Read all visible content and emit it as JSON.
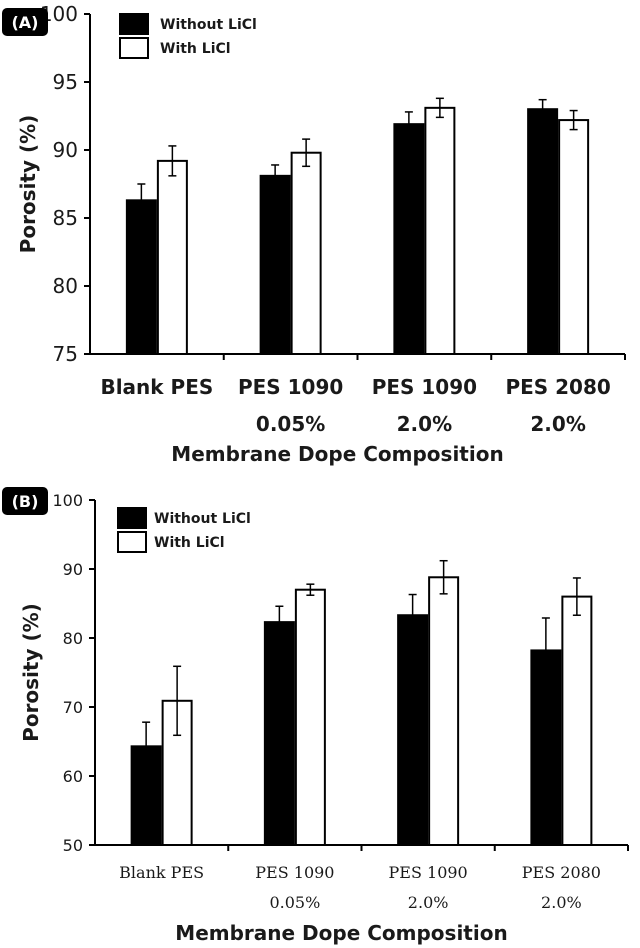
{
  "chart_data": [
    {
      "type": "bar",
      "panel_label": "(A)",
      "categories": [
        [
          "Blank PES"
        ],
        [
          "PES 1090",
          "0.05%"
        ],
        [
          "PES 1090",
          "2.0%"
        ],
        [
          "PES 2080",
          "2.0%"
        ]
      ],
      "series": [
        {
          "name": "Without LiCl",
          "color": "#000000",
          "values": [
            86.3,
            88.1,
            91.9,
            93.0
          ],
          "errors": [
            1.2,
            0.8,
            0.9,
            0.7
          ]
        },
        {
          "name": "With LiCl",
          "color": "#ffffff",
          "values": [
            89.2,
            89.8,
            93.1,
            92.2
          ],
          "errors": [
            1.1,
            1.0,
            0.7,
            0.7
          ]
        }
      ],
      "xlabel": "Membrane Dope Composition",
      "ylabel": "Porosity (%)",
      "ylim": [
        75,
        100
      ],
      "yticks": [
        75,
        80,
        85,
        90,
        95,
        100
      ],
      "grid": false,
      "legend": "top-left"
    },
    {
      "type": "bar",
      "panel_label": "(B)",
      "categories": [
        [
          "Blank PES"
        ],
        [
          "PES 1090",
          "0.05%"
        ],
        [
          "PES 1090",
          "2.0%"
        ],
        [
          "PES 2080",
          "2.0%"
        ]
      ],
      "series": [
        {
          "name": "Without LiCl",
          "color": "#000000",
          "values": [
            64.3,
            82.3,
            83.3,
            78.2
          ],
          "errors": [
            3.5,
            2.3,
            3.0,
            4.7
          ]
        },
        {
          "name": "With LiCl",
          "color": "#ffffff",
          "values": [
            70.9,
            87.0,
            88.8,
            86.0
          ],
          "errors": [
            5.0,
            0.8,
            2.4,
            2.7
          ]
        }
      ],
      "xlabel": "Membrane Dope Composition",
      "ylabel": "Porosity (%)",
      "ylim": [
        50,
        100
      ],
      "yticks": [
        50,
        60,
        70,
        80,
        90,
        100
      ],
      "grid": false,
      "legend": "top-left"
    }
  ]
}
